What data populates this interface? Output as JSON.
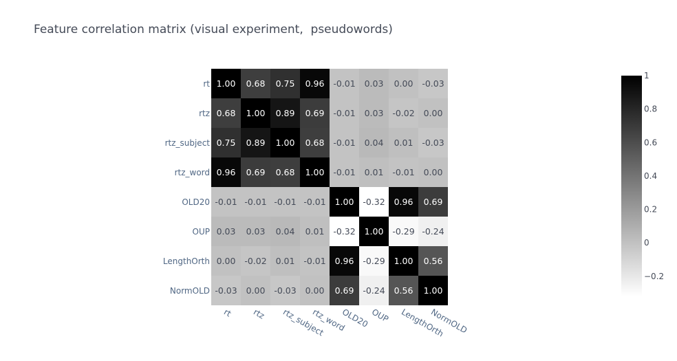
{
  "chart_data": {
    "type": "heatmap",
    "title": "Feature correlation matrix (visual experiment,  pseudowords)",
    "xlabel": "",
    "ylabel": "",
    "x_labels": [
      "rt",
      "rtz",
      "rtz_subject",
      "rtz_word",
      "OLD20",
      "OUP",
      "LengthOrth",
      "NormOLD"
    ],
    "y_labels": [
      "rt",
      "rtz",
      "rtz_subject",
      "rtz_word",
      "OLD20",
      "OUP",
      "LengthOrth",
      "NormOLD"
    ],
    "z": [
      [
        1.0,
        0.68,
        0.75,
        0.96,
        -0.01,
        0.03,
        0.0,
        -0.03
      ],
      [
        0.68,
        1.0,
        0.89,
        0.69,
        -0.01,
        0.03,
        -0.02,
        0.0
      ],
      [
        0.75,
        0.89,
        1.0,
        0.68,
        -0.01,
        0.04,
        0.01,
        -0.03
      ],
      [
        0.96,
        0.69,
        0.68,
        1.0,
        -0.01,
        0.01,
        -0.01,
        0.0
      ],
      [
        -0.01,
        -0.01,
        -0.01,
        -0.01,
        1.0,
        -0.32,
        0.96,
        0.69
      ],
      [
        0.03,
        0.03,
        0.04,
        0.01,
        -0.32,
        1.0,
        -0.29,
        -0.24
      ],
      [
        0.0,
        -0.02,
        0.01,
        -0.01,
        0.96,
        -0.29,
        1.0,
        0.56
      ],
      [
        -0.03,
        0.0,
        -0.03,
        0.0,
        0.69,
        -0.24,
        0.56,
        1.0
      ]
    ],
    "zlim": [
      -0.32,
      1.0
    ],
    "colorscale": [
      "#ffffff",
      "#000000"
    ],
    "colorbar_ticks": [
      "1",
      "0.8",
      "0.6",
      "0.4",
      "0.2",
      "0",
      "−0.2"
    ],
    "colorbar_tick_values": [
      1,
      0.8,
      0.6,
      0.4,
      0.2,
      0,
      -0.2
    ],
    "text_color_light": "#ffffff",
    "text_color_dark": "#444a57",
    "axis_label_color": "#506784"
  }
}
